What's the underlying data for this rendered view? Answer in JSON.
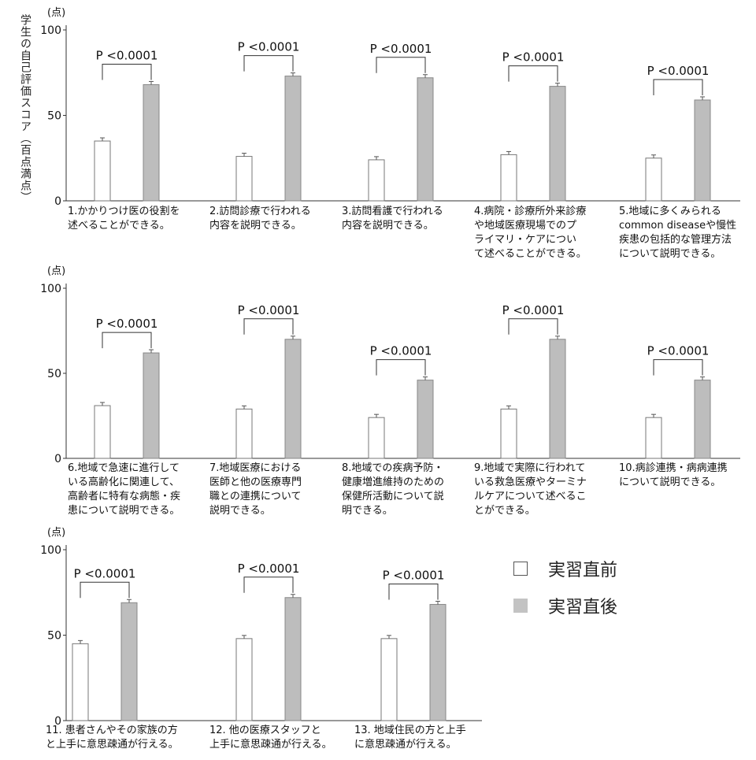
{
  "y_axis_title": "学生の自己評価スコア（百点満点）",
  "unit_label": "(点)",
  "legend": {
    "before": {
      "label": "実習直前",
      "fill": "#ffffff",
      "stroke": "#777777"
    },
    "after": {
      "label": "実習直後",
      "fill": "#bdbdbd",
      "stroke": "#888888"
    }
  },
  "chart_data": {
    "type": "bar",
    "ylim": [
      0,
      100
    ],
    "yticks": [
      "0",
      "50",
      "100"
    ],
    "series_names": [
      "実習直前",
      "実習直後"
    ],
    "panels": [
      {
        "label": "1.かかりつけ医の役割を述べることができる。",
        "lines": [
          "1.かかりつけ医の役割を",
          "述べることができる。"
        ],
        "before": 35,
        "after": 68,
        "p_label": "P <0.0001"
      },
      {
        "label": "2.訪問診療で行われる内容を説明できる。",
        "lines": [
          "2.訪問診療で行われる",
          "内容を説明できる。"
        ],
        "before": 26,
        "after": 73,
        "p_label": "P <0.0001"
      },
      {
        "label": "3.訪問看護で行われる内容を説明できる。",
        "lines": [
          "3.訪問看護で行われる",
          "内容を説明できる。"
        ],
        "before": 24,
        "after": 72,
        "p_label": "P <0.0001"
      },
      {
        "label": "4.病院・診療所外来診療や地域医療現場でのプライマリ・ケアについて述べることができる。",
        "lines": [
          "4.病院・診療所外来診療",
          "や地域医療現場でのプ",
          "ライマリ・ケアについ",
          "て述べることができる。"
        ],
        "before": 27,
        "after": 67,
        "p_label": "P <0.0001"
      },
      {
        "label": "5.地域に多くみられるcommon diseaseや慢性疾患の包括的な管理方法について説明できる。",
        "lines": [
          "5.地域に多くみられる",
          "common diseaseや慢性",
          "疾患の包括的な管理方法",
          "について説明できる。"
        ],
        "before": 25,
        "after": 59,
        "p_label": "P <0.0001"
      },
      {
        "label": "6.地域で急速に進行している高齢化に関連して、高齢者に特有な病態・疾患について説明できる。",
        "lines": [
          "6.地域で急速に進行して",
          "いる高齢化に関連して、",
          "高齢者に特有な病態・疾",
          "患について説明できる。"
        ],
        "before": 31,
        "after": 62,
        "p_label": "P <0.0001"
      },
      {
        "label": "7.地域医療における医師と他の医療専門職との連携について説明できる。",
        "lines": [
          "7.地域医療における",
          "医師と他の医療専門",
          "職との連携について",
          "説明できる。"
        ],
        "before": 29,
        "after": 70,
        "p_label": "P <0.0001"
      },
      {
        "label": "8.地域での疾病予防・健康増進維持のための保健所活動について説明できる。",
        "lines": [
          "8.地域での疾病予防・",
          "健康増進維持のための",
          "保健所活動について説",
          "明できる。"
        ],
        "before": 24,
        "after": 46,
        "p_label": "P <0.0001"
      },
      {
        "label": "9.地域で実際に行われている救急医療やターミナルケアについて述べることができる。",
        "lines": [
          "9.地域で実際に行われて",
          "いる救急医療やターミナ",
          "ルケアについて述べるこ",
          "とができる。"
        ],
        "before": 29,
        "after": 70,
        "p_label": "P <0.0001"
      },
      {
        "label": "10.病診連携・病病連携について説明できる。",
        "lines": [
          "10.病診連携・病病連携",
          "について説明できる。"
        ],
        "before": 24,
        "after": 46,
        "p_label": "P <0.0001"
      },
      {
        "label": "11. 患者さんやその家族の方と上手に意思疎通が行える。",
        "lines": [
          "11. 患者さんやその家族の方",
          "と上手に意思疎通が行える。"
        ],
        "before": 45,
        "after": 69,
        "p_label": "P <0.0001"
      },
      {
        "label": "12. 他の医療スタッフと上手に意思疎通が行える。",
        "lines": [
          "12. 他の医療スタッフと",
          "上手に意思疎通が行える。"
        ],
        "before": 48,
        "after": 72,
        "p_label": "P <0.0001"
      },
      {
        "label": "13. 地域住民の方と上手に意思疎通が行える。",
        "lines": [
          "13. 地域住民の方と上手",
          "に意思疎通が行える。"
        ],
        "before": 48,
        "after": 68,
        "p_label": "P <0.0001"
      }
    ]
  }
}
